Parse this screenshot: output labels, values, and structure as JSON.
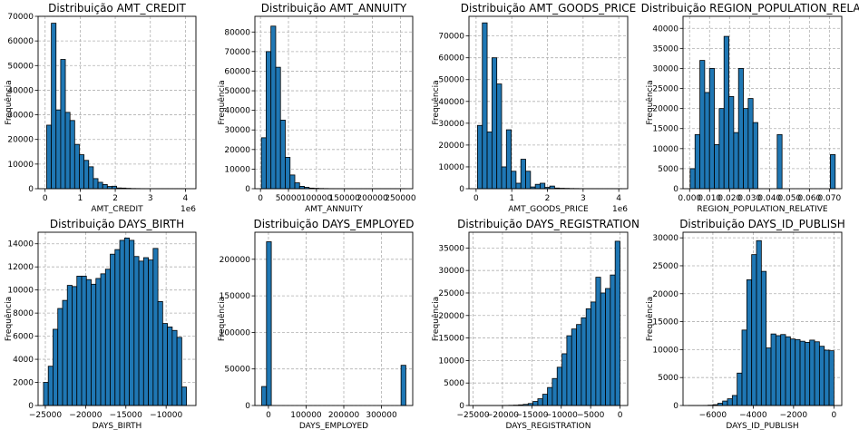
{
  "figure": {
    "bar_color": "#1f77b4",
    "edge_color": "#000000",
    "grid": true
  },
  "chart_data": [
    {
      "type": "bar",
      "title": "Distribuição AMT_CREDIT",
      "xlabel": "AMT_CREDIT",
      "ylabel": "Frequência",
      "x_offset_label": "1e6",
      "xlim": [
        -0.2,
        4.3
      ],
      "ylim": [
        0,
        70000
      ],
      "xticks": [
        0,
        1,
        2,
        3,
        4
      ],
      "xtick_labels": [
        "0",
        "1",
        "2",
        "3",
        "4"
      ],
      "yticks": [
        0,
        10000,
        20000,
        30000,
        40000,
        50000,
        60000,
        70000
      ],
      "bin_start": 0.045,
      "bin_width": 0.133,
      "values": [
        25800,
        67200,
        32000,
        52500,
        31000,
        27700,
        18000,
        13800,
        11500,
        8900,
        4100,
        2600,
        1700,
        900,
        1000,
        300,
        250,
        150,
        80,
        60,
        40,
        30,
        20,
        15,
        10,
        8,
        5,
        3,
        2,
        2
      ]
    },
    {
      "type": "bar",
      "title": "Distribuição AMT_ANNUITY",
      "xlabel": "AMT_ANNUITY",
      "ylabel": "Frequência",
      "x_offset_label": "",
      "xlim": [
        -10000,
        272000
      ],
      "ylim": [
        0,
        88000
      ],
      "xticks": [
        0,
        50000,
        100000,
        150000,
        200000,
        250000
      ],
      "xtick_labels": [
        "0",
        "50000",
        "100000",
        "150000",
        "200000",
        "250000"
      ],
      "yticks": [
        0,
        10000,
        20000,
        30000,
        40000,
        50000,
        60000,
        70000,
        80000
      ],
      "bin_start": 1616,
      "bin_width": 8532,
      "values": [
        26000,
        70000,
        83000,
        62000,
        35000,
        16000,
        7000,
        3000,
        1200,
        700,
        300,
        200,
        120,
        80,
        50,
        40,
        30,
        20,
        10,
        8,
        5,
        4,
        3,
        2,
        2,
        1,
        1,
        1,
        1,
        1
      ]
    },
    {
      "type": "bar",
      "title": "Distribuição AMT_GOODS_PRICE",
      "xlabel": "AMT_GOODS_PRICE",
      "ylabel": "Frequência",
      "x_offset_label": "1e6",
      "xlim": [
        -0.2,
        4.25
      ],
      "ylim": [
        0,
        79000
      ],
      "xticks": [
        0,
        1,
        2,
        3,
        4
      ],
      "xtick_labels": [
        "0",
        "1",
        "2",
        "3",
        "4"
      ],
      "yticks": [
        0,
        10000,
        20000,
        30000,
        40000,
        50000,
        60000,
        70000
      ],
      "bin_start": 0.04,
      "bin_width": 0.135,
      "values": [
        29000,
        76000,
        26000,
        60000,
        48000,
        10000,
        27000,
        8000,
        2500,
        13500,
        8000,
        800,
        2000,
        2500,
        600,
        1200,
        300,
        200,
        150,
        100,
        80,
        50,
        30,
        20,
        10,
        8,
        5,
        3,
        2,
        2
      ]
    },
    {
      "type": "bar",
      "title": "Distribuição REGION_POPULATION_RELATIVE",
      "xlabel": "REGION_POPULATION_RELATIVE",
      "ylabel": "Frequência",
      "x_offset_label": "",
      "xlim": [
        -0.0033,
        0.0762
      ],
      "ylim": [
        0,
        43000
      ],
      "xticks": [
        0,
        0.01,
        0.02,
        0.03,
        0.04,
        0.05,
        0.06,
        0.07
      ],
      "xtick_labels": [
        "0.000",
        "0.010",
        "0.020",
        "0.030",
        "0.040",
        "0.050",
        "0.060",
        "0.070"
      ],
      "yticks": [
        0,
        5000,
        10000,
        15000,
        20000,
        25000,
        30000,
        35000,
        40000
      ],
      "bin_start": 0.00029,
      "bin_width": 0.002421,
      "values": [
        5000,
        13500,
        32000,
        24000,
        30000,
        11000,
        20000,
        38000,
        23000,
        14000,
        30000,
        20000,
        22500,
        16500,
        0,
        0,
        0,
        0,
        13500,
        0,
        0,
        0,
        0,
        0,
        0,
        0,
        0,
        0,
        0,
        8500
      ]
    },
    {
      "type": "bar",
      "title": "Distribuição DAYS_BIRTH",
      "xlabel": "DAYS_BIRTH",
      "ylabel": "Frequência",
      "x_offset_label": "",
      "xlim": [
        -25900,
        -6300
      ],
      "ylim": [
        0,
        15000
      ],
      "xticks": [
        -25000,
        -20000,
        -15000,
        -10000
      ],
      "xtick_labels": [
        "−25000",
        "−20000",
        "−15000",
        "−10000"
      ],
      "yticks": [
        0,
        2000,
        4000,
        6000,
        8000,
        10000,
        12000,
        14000
      ],
      "bin_start": -25229,
      "bin_width": 592,
      "values": [
        2000,
        3400,
        6600,
        8400,
        9100,
        10400,
        10300,
        11200,
        11200,
        10900,
        10500,
        11000,
        11400,
        11800,
        13100,
        13500,
        14300,
        14500,
        14300,
        12900,
        12500,
        12800,
        12600,
        13600,
        9000,
        7100,
        6800,
        6500,
        5900,
        1600
      ]
    },
    {
      "type": "bar",
      "title": "Distribuição DAYS_EMPLOYED",
      "xlabel": "DAYS_EMPLOYED",
      "ylabel": "Frequência",
      "x_offset_label": "",
      "xlim": [
        -36000,
        383000
      ],
      "ylim": [
        0,
        237000
      ],
      "xticks": [
        0,
        100000,
        200000,
        300000
      ],
      "xtick_labels": [
        "0",
        "100000",
        "200000",
        "300000"
      ],
      "yticks": [
        0,
        50000,
        100000,
        150000,
        200000
      ],
      "bin_start": -17912,
      "bin_width": 12756,
      "values": [
        26000,
        224000,
        0,
        0,
        0,
        0,
        0,
        0,
        0,
        0,
        0,
        0,
        0,
        0,
        0,
        0,
        0,
        0,
        0,
        0,
        0,
        0,
        0,
        0,
        0,
        0,
        0,
        0,
        0,
        55000
      ]
    },
    {
      "type": "bar",
      "title": "Distribuição DAYS_REGISTRATION",
      "xlabel": "DAYS_REGISTRATION",
      "ylabel": "Frequência",
      "x_offset_label": "",
      "xlim": [
        -25700,
        1300
      ],
      "ylim": [
        0,
        38500
      ],
      "xticks": [
        -25000,
        -20000,
        -15000,
        -10000,
        -5000,
        0
      ],
      "xtick_labels": [
        "−25000",
        "−20000",
        "−15000",
        "−10000",
        "−5000",
        "0"
      ],
      "yticks": [
        0,
        5000,
        10000,
        15000,
        20000,
        25000,
        30000,
        35000
      ],
      "bin_start": -24672,
      "bin_width": 822,
      "values": [
        2,
        3,
        5,
        8,
        12,
        20,
        30,
        50,
        80,
        150,
        250,
        450,
        900,
        1500,
        2500,
        4000,
        6000,
        8500,
        11500,
        15500,
        17000,
        18000,
        19500,
        21500,
        23000,
        28500,
        25000,
        26000,
        29000,
        36500
      ]
    },
    {
      "type": "bar",
      "title": "Distribuição DAYS_ID_PUBLISH",
      "xlabel": "DAYS_ID_PUBLISH",
      "ylabel": "Frequência",
      "x_offset_label": "",
      "xlim": [
        -7480,
        390
      ],
      "ylim": [
        0,
        31000
      ],
      "xticks": [
        -6000,
        -4000,
        -2000,
        0
      ],
      "xtick_labels": [
        "−6000",
        "−4000",
        "−2000",
        "0"
      ],
      "yticks": [
        0,
        5000,
        10000,
        15000,
        20000,
        25000,
        30000
      ],
      "bin_start": -7197,
      "bin_width": 240,
      "values": [
        2,
        5,
        10,
        20,
        60,
        150,
        400,
        800,
        1200,
        1800,
        5800,
        13500,
        22500,
        27000,
        29500,
        24000,
        10300,
        12800,
        12500,
        12700,
        12300,
        11900,
        11800,
        11500,
        11300,
        11700,
        11400,
        10600,
        9900,
        9800
      ]
    }
  ]
}
